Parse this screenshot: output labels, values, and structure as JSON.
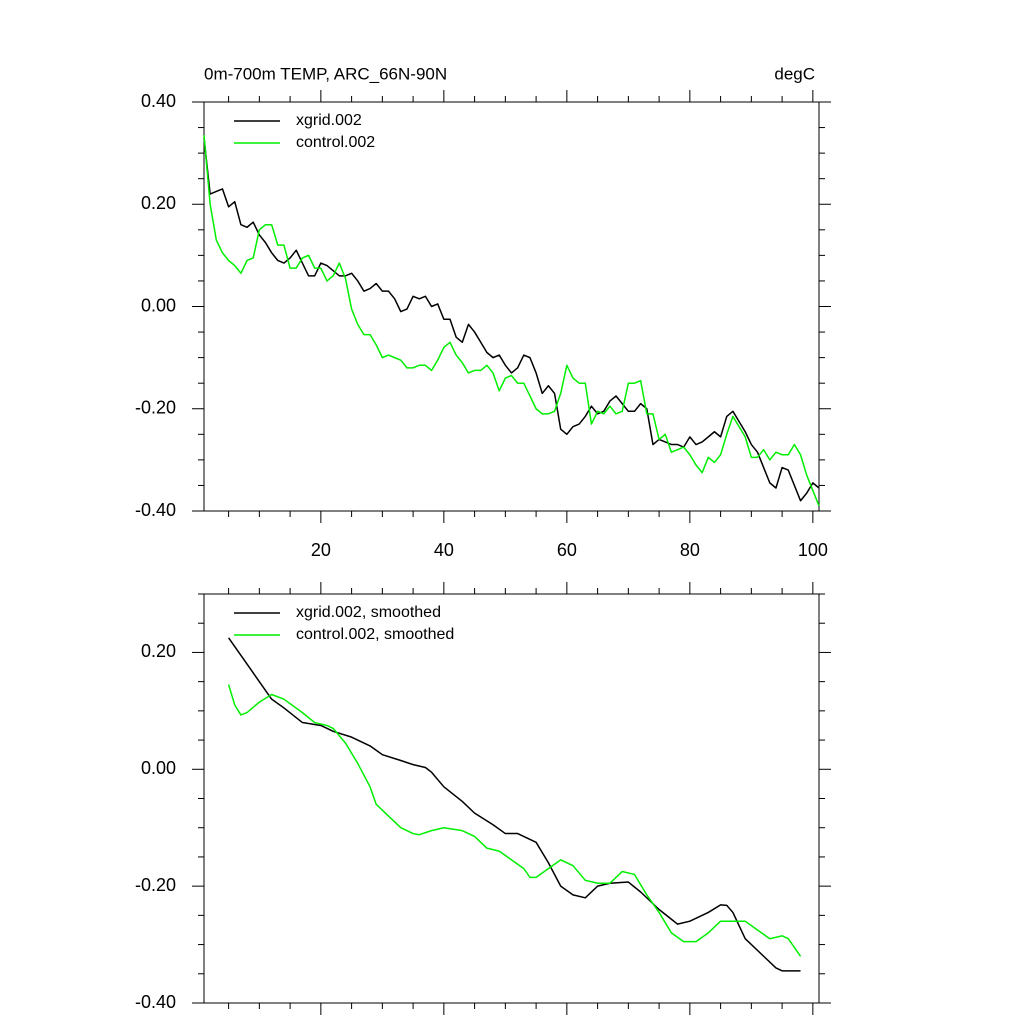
{
  "chart_data": [
    {
      "type": "line",
      "title": "0m-700m TEMP, ARC_66N-90N",
      "units": "degC",
      "x": [
        1,
        2,
        3,
        4,
        5,
        6,
        7,
        8,
        9,
        10,
        11,
        12,
        13,
        14,
        15,
        16,
        17,
        18,
        19,
        20,
        21,
        22,
        23,
        24,
        25,
        26,
        27,
        28,
        29,
        30,
        31,
        32,
        33,
        34,
        35,
        36,
        37,
        38,
        39,
        40,
        41,
        42,
        43,
        44,
        45,
        46,
        47,
        48,
        49,
        50,
        51,
        52,
        53,
        54,
        55,
        56,
        57,
        58,
        59,
        60,
        61,
        62,
        63,
        64,
        65,
        66,
        67,
        68,
        69,
        70,
        71,
        72,
        73,
        74,
        75,
        76,
        77,
        78,
        79,
        80,
        81,
        82,
        83,
        84,
        85,
        86,
        87,
        88,
        89,
        90,
        91,
        92,
        93,
        94,
        95,
        96,
        97,
        98,
        99,
        100,
        101
      ],
      "series": [
        {
          "name": "xgrid.002",
          "color": "#000000",
          "values": [
            0.33,
            0.22,
            0.225,
            0.23,
            0.195,
            0.205,
            0.16,
            0.155,
            0.165,
            0.14,
            0.125,
            0.105,
            0.09,
            0.085,
            0.095,
            0.11,
            0.085,
            0.06,
            0.06,
            0.085,
            0.08,
            0.07,
            0.06,
            0.06,
            0.065,
            0.05,
            0.03,
            0.035,
            0.045,
            0.03,
            0.03,
            0.015,
            -0.01,
            -0.005,
            0.02,
            0.015,
            0.02,
            0.0,
            0.005,
            -0.025,
            -0.025,
            -0.06,
            -0.07,
            -0.035,
            -0.05,
            -0.07,
            -0.09,
            -0.1,
            -0.095,
            -0.115,
            -0.13,
            -0.12,
            -0.095,
            -0.1,
            -0.13,
            -0.17,
            -0.155,
            -0.17,
            -0.24,
            -0.25,
            -0.235,
            -0.23,
            -0.215,
            -0.195,
            -0.21,
            -0.205,
            -0.185,
            -0.175,
            -0.19,
            -0.205,
            -0.205,
            -0.19,
            -0.2,
            -0.27,
            -0.26,
            -0.265,
            -0.27,
            -0.27,
            -0.275,
            -0.255,
            -0.27,
            -0.265,
            -0.255,
            -0.245,
            -0.255,
            -0.215,
            -0.205,
            -0.225,
            -0.245,
            -0.27,
            -0.285,
            -0.315,
            -0.345,
            -0.355,
            -0.315,
            -0.32,
            -0.35,
            -0.38,
            -0.365,
            -0.345,
            -0.355
          ]
        },
        {
          "name": "control.002",
          "color": "#00ee00",
          "values": [
            0.335,
            0.2,
            0.13,
            0.105,
            0.09,
            0.08,
            0.065,
            0.09,
            0.095,
            0.15,
            0.16,
            0.16,
            0.12,
            0.12,
            0.075,
            0.075,
            0.095,
            0.1,
            0.075,
            0.075,
            0.05,
            0.06,
            0.085,
            0.055,
            -0.005,
            -0.035,
            -0.055,
            -0.055,
            -0.075,
            -0.1,
            -0.095,
            -0.1,
            -0.105,
            -0.12,
            -0.12,
            -0.115,
            -0.115,
            -0.125,
            -0.105,
            -0.08,
            -0.07,
            -0.095,
            -0.11,
            -0.13,
            -0.125,
            -0.125,
            -0.115,
            -0.13,
            -0.165,
            -0.14,
            -0.135,
            -0.15,
            -0.15,
            -0.175,
            -0.2,
            -0.21,
            -0.21,
            -0.205,
            -0.17,
            -0.115,
            -0.14,
            -0.15,
            -0.15,
            -0.23,
            -0.205,
            -0.21,
            -0.195,
            -0.21,
            -0.205,
            -0.15,
            -0.15,
            -0.145,
            -0.21,
            -0.21,
            -0.26,
            -0.25,
            -0.285,
            -0.28,
            -0.275,
            -0.29,
            -0.31,
            -0.325,
            -0.295,
            -0.305,
            -0.29,
            -0.25,
            -0.215,
            -0.235,
            -0.255,
            -0.295,
            -0.295,
            -0.28,
            -0.3,
            -0.285,
            -0.29,
            -0.29,
            -0.27,
            -0.29,
            -0.33,
            -0.36,
            -0.39
          ]
        }
      ],
      "xlim": [
        1,
        101
      ],
      "xticks": [
        20,
        40,
        60,
        80,
        100
      ],
      "ylim": [
        -0.4,
        0.4
      ],
      "yticks": [
        {
          "value": -0.4,
          "label": "-0.40"
        },
        {
          "value": -0.2,
          "label": "-0.20"
        },
        {
          "value": 0,
          "label": "0.00"
        },
        {
          "value": 0.2,
          "label": "0.20"
        },
        {
          "value": 0.4,
          "label": "0.40"
        }
      ],
      "legend": "top-left"
    },
    {
      "type": "line",
      "series": [
        {
          "name": "xgrid.002, smoothed",
          "color": "#000000",
          "x": [
            5,
            7,
            10,
            12,
            14,
            17,
            20,
            22,
            25,
            28,
            30,
            33,
            35,
            37,
            38,
            40,
            43,
            45,
            48,
            50,
            52,
            55,
            57,
            59,
            61,
            63,
            65,
            67,
            70,
            72,
            75,
            78,
            80,
            83,
            85,
            86,
            87,
            89,
            92,
            94,
            95,
            98
          ],
          "values": [
            0.225,
            0.195,
            0.15,
            0.12,
            0.105,
            0.08,
            0.075,
            0.065,
            0.055,
            0.04,
            0.025,
            0.015,
            0.008,
            0.003,
            -0.005,
            -0.03,
            -0.055,
            -0.075,
            -0.095,
            -0.11,
            -0.11,
            -0.125,
            -0.16,
            -0.2,
            -0.215,
            -0.22,
            -0.2,
            -0.195,
            -0.193,
            -0.21,
            -0.24,
            -0.265,
            -0.26,
            -0.245,
            -0.232,
            -0.233,
            -0.245,
            -0.29,
            -0.32,
            -0.34,
            -0.345,
            -0.345
          ]
        },
        {
          "name": "control.002, smoothed",
          "color": "#00ee00",
          "x": [
            5,
            6,
            7,
            8,
            10,
            12,
            14,
            17,
            19,
            21,
            22,
            24,
            26,
            28,
            29,
            31,
            33,
            35,
            36,
            38,
            40,
            43,
            45,
            47,
            49,
            51,
            53,
            54,
            55,
            57,
            59,
            61,
            63,
            65,
            67,
            69,
            71,
            73,
            75,
            77,
            79,
            81,
            83,
            85,
            87,
            89,
            91,
            93,
            95,
            96,
            98
          ],
          "values": [
            0.145,
            0.11,
            0.093,
            0.097,
            0.115,
            0.128,
            0.12,
            0.097,
            0.08,
            0.075,
            0.07,
            0.045,
            0.01,
            -0.03,
            -0.06,
            -0.08,
            -0.1,
            -0.11,
            -0.112,
            -0.105,
            -0.1,
            -0.105,
            -0.115,
            -0.135,
            -0.14,
            -0.155,
            -0.17,
            -0.185,
            -0.185,
            -0.17,
            -0.155,
            -0.165,
            -0.19,
            -0.195,
            -0.195,
            -0.175,
            -0.18,
            -0.215,
            -0.245,
            -0.28,
            -0.295,
            -0.295,
            -0.28,
            -0.26,
            -0.26,
            -0.26,
            -0.275,
            -0.29,
            -0.285,
            -0.29,
            -0.32
          ]
        }
      ],
      "xlim": [
        1,
        101
      ],
      "xticks": [
        20,
        40,
        60,
        80,
        100
      ],
      "ylim": [
        -0.4,
        0.3
      ],
      "yticks": [
        {
          "value": -0.4,
          "label": "-0.40"
        },
        {
          "value": -0.2,
          "label": "-0.20"
        },
        {
          "value": 0,
          "label": "0.00"
        },
        {
          "value": 0.2,
          "label": "0.20"
        }
      ],
      "legend": "top-left"
    }
  ]
}
